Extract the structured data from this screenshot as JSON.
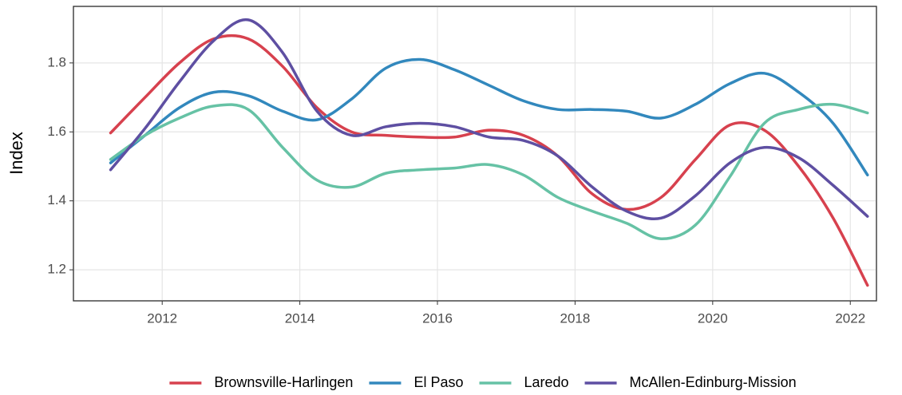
{
  "chart_data": {
    "type": "line",
    "ylabel": "Index",
    "x": [
      2011.25,
      2011.75,
      2012.25,
      2012.75,
      2013.25,
      2013.75,
      2014.25,
      2014.75,
      2015.25,
      2015.75,
      2016.25,
      2016.75,
      2017.25,
      2017.75,
      2018.25,
      2018.75,
      2019.25,
      2019.75,
      2020.25,
      2020.75,
      2021.25,
      2021.75,
      2022.25
    ],
    "series": [
      {
        "name": "Brownsville-Harlingen",
        "color": "#d7414e",
        "values": [
          1.597,
          1.7,
          1.8,
          1.87,
          1.87,
          1.79,
          1.67,
          1.6,
          1.59,
          1.585,
          1.585,
          1.605,
          1.59,
          1.53,
          1.42,
          1.375,
          1.41,
          1.52,
          1.62,
          1.605,
          1.5,
          1.35,
          1.155
        ]
      },
      {
        "name": "El Paso",
        "color": "#3288bd",
        "values": [
          1.51,
          1.59,
          1.67,
          1.715,
          1.705,
          1.66,
          1.635,
          1.695,
          1.785,
          1.81,
          1.78,
          1.735,
          1.69,
          1.665,
          1.665,
          1.66,
          1.64,
          1.68,
          1.74,
          1.77,
          1.715,
          1.625,
          1.475
        ]
      },
      {
        "name": "Laredo",
        "color": "#66c2a5",
        "values": [
          1.52,
          1.59,
          1.64,
          1.675,
          1.665,
          1.555,
          1.46,
          1.44,
          1.48,
          1.49,
          1.495,
          1.505,
          1.475,
          1.41,
          1.37,
          1.335,
          1.29,
          1.33,
          1.47,
          1.625,
          1.665,
          1.68,
          1.655
        ]
      },
      {
        "name": "McAllen-Edinburg-Mission",
        "color": "#5e4fa2",
        "values": [
          1.49,
          1.61,
          1.745,
          1.865,
          1.925,
          1.83,
          1.66,
          1.59,
          1.615,
          1.625,
          1.615,
          1.585,
          1.575,
          1.53,
          1.44,
          1.37,
          1.35,
          1.415,
          1.51,
          1.555,
          1.525,
          1.445,
          1.355
        ]
      }
    ],
    "xlim": [
      2010.71,
      2022.38
    ],
    "xticks": [
      2012,
      2014,
      2016,
      2018,
      2020,
      2022
    ],
    "ylim": [
      1.11,
      1.964
    ],
    "yticks": [
      1.2,
      1.4,
      1.6,
      1.8
    ],
    "grid": true,
    "legend": "bottom"
  }
}
